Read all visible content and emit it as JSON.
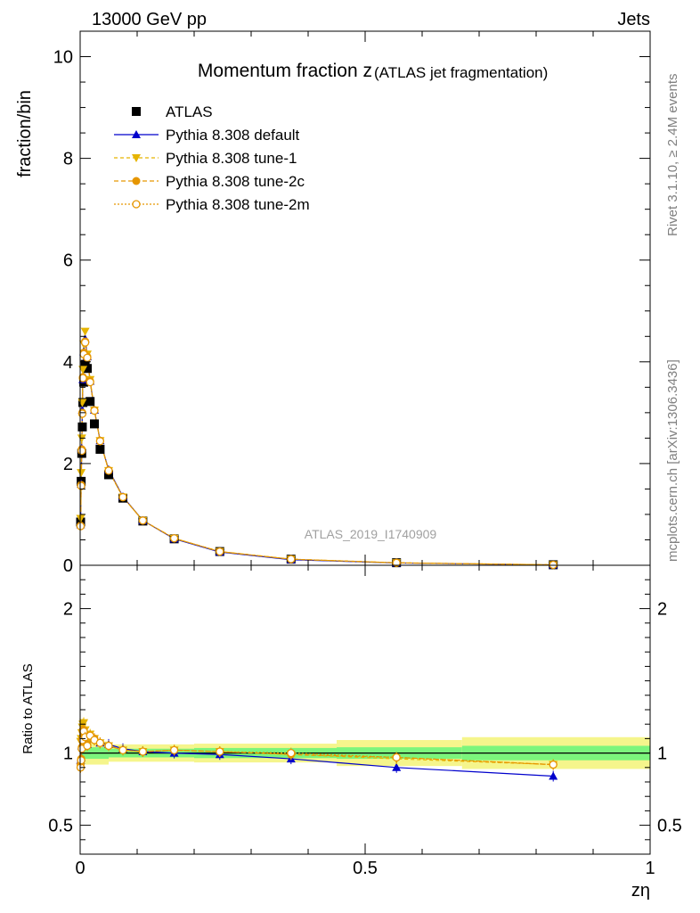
{
  "header": {
    "left": "13000 GeV pp",
    "right": "Jets"
  },
  "side_labels": {
    "rivet": "Rivet 3.1.10, ≥ 2.4M events",
    "mcplots": "mcplots.cern.ch [arXiv:1306.3436]"
  },
  "colors": {
    "atlas": "#000000",
    "default": "#0000cc",
    "tune1": "#e6b400",
    "tune2c": "#e69600",
    "tune2m": "#e69600",
    "band_inner": "#7cf57c",
    "band_outer": "#f5f58c"
  },
  "chart_data": [
    {
      "type": "scatter",
      "panel": "main",
      "title": "Momentum fraction z",
      "title_suffix": "(ATLAS jet fragmentation)",
      "ylabel": "fraction/bin",
      "watermark": "ATLAS_2019_I1740909",
      "xlim": [
        0,
        1
      ],
      "ylim": [
        0,
        10.5
      ],
      "yticks": [
        0,
        2,
        4,
        6,
        8,
        10
      ],
      "legend_position": "top-left",
      "x": [
        0.0008,
        0.0018,
        0.0028,
        0.0038,
        0.0048,
        0.0063,
        0.0088,
        0.0125,
        0.0175,
        0.025,
        0.035,
        0.05,
        0.075,
        0.11,
        0.165,
        0.245,
        0.37,
        0.555,
        0.83
      ],
      "series": [
        {
          "name": "ATLAS",
          "marker": "square",
          "values": [
            0.85,
            1.65,
            2.2,
            2.72,
            3.2,
            3.6,
            3.95,
            3.87,
            3.22,
            2.78,
            2.28,
            1.78,
            1.32,
            0.87,
            0.52,
            0.27,
            0.12,
            0.05,
            0.01
          ]
        },
        {
          "name": "Pythia 8.308 default",
          "marker": "triangle-up",
          "values": [
            0.8,
            1.6,
            2.3,
            3.05,
            3.65,
            4.2,
            4.45,
            4.1,
            3.62,
            3.05,
            2.45,
            1.88,
            1.35,
            0.88,
            0.52,
            0.26,
            0.11,
            0.045,
            0.008
          ]
        },
        {
          "name": "Pythia 8.308 tune-1",
          "marker": "triangle-down",
          "values": [
            0.92,
            1.82,
            2.5,
            3.2,
            3.85,
            4.35,
            4.6,
            4.15,
            3.65,
            3.05,
            2.45,
            1.86,
            1.34,
            0.88,
            0.53,
            0.27,
            0.12,
            0.048,
            0.009
          ]
        },
        {
          "name": "Pythia 8.308 tune-2c",
          "marker": "circle",
          "values": [
            0.78,
            1.58,
            2.28,
            3.0,
            3.7,
            4.18,
            4.4,
            4.1,
            3.62,
            3.05,
            2.45,
            1.87,
            1.34,
            0.88,
            0.53,
            0.27,
            0.12,
            0.049,
            0.009
          ]
        },
        {
          "name": "Pythia 8.308 tune-2m",
          "marker": "circle-open",
          "values": [
            0.77,
            1.56,
            2.25,
            2.98,
            3.68,
            4.15,
            4.38,
            4.08,
            3.6,
            3.04,
            2.44,
            1.86,
            1.34,
            0.88,
            0.53,
            0.27,
            0.12,
            0.049,
            0.009
          ]
        }
      ]
    },
    {
      "type": "line",
      "panel": "ratio",
      "ylabel": "Ratio to ATLAS",
      "xlabel": "zη",
      "xlim": [
        0,
        1
      ],
      "ylim": [
        0.3,
        2.3
      ],
      "yticks": [
        0.5,
        1,
        2
      ],
      "xticks": [
        0,
        0.5,
        1
      ],
      "x": [
        0.0008,
        0.0018,
        0.0028,
        0.0038,
        0.0048,
        0.0063,
        0.0088,
        0.0125,
        0.0175,
        0.025,
        0.035,
        0.05,
        0.075,
        0.11,
        0.165,
        0.245,
        0.37,
        0.555,
        0.83
      ],
      "band": {
        "edges": [
          0,
          0.05,
          0.2,
          0.45,
          0.67,
          1
        ],
        "inner": [
          0.04,
          0.03,
          0.035,
          0.04,
          0.05
        ],
        "outer": [
          0.08,
          0.06,
          0.065,
          0.09,
          0.11
        ]
      },
      "series": [
        {
          "name": "Pythia 8.308 default",
          "values": [
            0.95,
            0.97,
            1.05,
            1.12,
            1.14,
            1.17,
            1.13,
            1.06,
            1.12,
            1.1,
            1.07,
            1.06,
            1.03,
            1.01,
            1.0,
            0.99,
            0.96,
            0.9,
            0.84
          ]
        },
        {
          "name": "Pythia 8.308 tune-1",
          "values": [
            1.08,
            1.1,
            1.14,
            1.18,
            1.2,
            1.21,
            1.16,
            1.07,
            1.13,
            1.1,
            1.07,
            1.05,
            1.02,
            1.01,
            1.02,
            1.01,
            0.99,
            0.96,
            0.92
          ]
        },
        {
          "name": "Pythia 8.308 tune-2c",
          "values": [
            0.92,
            0.96,
            1.04,
            1.1,
            1.16,
            1.16,
            1.11,
            1.06,
            1.12,
            1.1,
            1.07,
            1.05,
            1.02,
            1.01,
            1.02,
            1.01,
            0.99,
            0.97,
            0.92
          ]
        },
        {
          "name": "Pythia 8.308 tune-2m",
          "values": [
            0.9,
            0.95,
            1.03,
            1.09,
            1.15,
            1.15,
            1.11,
            1.05,
            1.12,
            1.09,
            1.07,
            1.05,
            1.02,
            1.01,
            1.02,
            1.01,
            1.0,
            0.97,
            0.92
          ]
        }
      ]
    }
  ]
}
